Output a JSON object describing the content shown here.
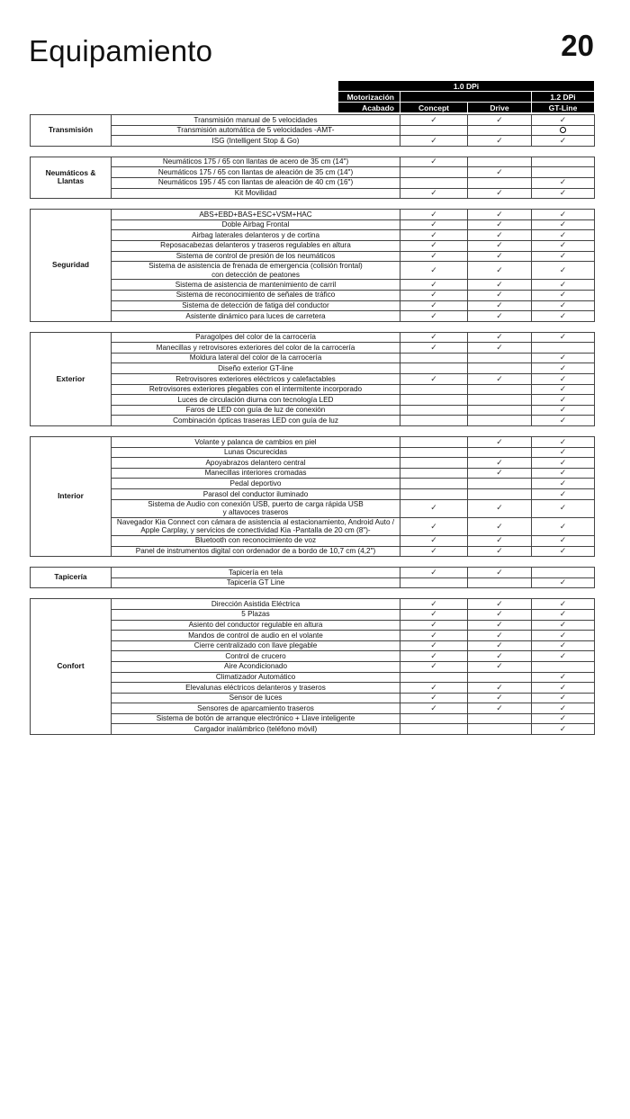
{
  "title": "Equipamiento",
  "page_number": "20",
  "header": {
    "engine_group": "1.0 DPi",
    "motorizacion_label": "Motorización",
    "engine_alt": "1.2 DPi",
    "acabado_label": "Acabado",
    "trims": [
      "Concept",
      "Drive",
      "GT-Line"
    ]
  },
  "symbols": {
    "check": "✓",
    "circle": "optional-circle-icon"
  },
  "sections": [
    {
      "name": "Transmisión",
      "rows": [
        {
          "f": "Transmisión manual de 5 velocidades",
          "v": [
            "c",
            "c",
            "c"
          ]
        },
        {
          "f": "Transmisión automática de 5 velocidades -AMT-",
          "v": [
            "",
            "",
            "o"
          ]
        },
        {
          "f": "ISG (Intelligent Stop & Go)",
          "v": [
            "c",
            "c",
            "c"
          ]
        }
      ]
    },
    {
      "name": "Neumáticos & Llantas",
      "rows": [
        {
          "f": "Neumáticos 175 / 65 con llantas de acero de 35 cm (14\")",
          "v": [
            "c",
            "",
            ""
          ]
        },
        {
          "f": "Neumáticos 175 / 65 con llantas de aleación de 35 cm (14\")",
          "v": [
            "",
            "c",
            ""
          ]
        },
        {
          "f": "Neumáticos 195 / 45 con llantas de aleación de 40 cm (16\")",
          "v": [
            "",
            "",
            "c"
          ]
        },
        {
          "f": "Kit Movilidad",
          "v": [
            "c",
            "c",
            "c"
          ]
        }
      ]
    },
    {
      "name": "Seguridad",
      "rows": [
        {
          "f": "ABS+EBD+BAS+ESC+VSM+HAC",
          "v": [
            "c",
            "c",
            "c"
          ]
        },
        {
          "f": "Doble Airbag Frontal",
          "v": [
            "c",
            "c",
            "c"
          ]
        },
        {
          "f": "Airbag laterales delanteros y de cortina",
          "v": [
            "c",
            "c",
            "c"
          ]
        },
        {
          "f": "Reposacabezas delanteros y traseros regulables en altura",
          "v": [
            "c",
            "c",
            "c"
          ]
        },
        {
          "f": "Sistema de control de presión de los neumáticos",
          "v": [
            "c",
            "c",
            "c"
          ]
        },
        {
          "f": "Sistema de asistencia de frenada de emergencia (colisión frontal)\ncon detección de peatones",
          "v": [
            "c",
            "c",
            "c"
          ]
        },
        {
          "f": "Sistema de asistencia de mantenimiento de carril",
          "v": [
            "c",
            "c",
            "c"
          ]
        },
        {
          "f": "Sistema de reconocimiento de señales de tráfico",
          "v": [
            "c",
            "c",
            "c"
          ]
        },
        {
          "f": "Sistema de detección de fatiga del conductor",
          "v": [
            "c",
            "c",
            "c"
          ]
        },
        {
          "f": "Asistente dinámico para luces de carretera",
          "v": [
            "c",
            "c",
            "c"
          ]
        }
      ]
    },
    {
      "name": "Exterior",
      "rows": [
        {
          "f": "Paragolpes del color de la carrocería",
          "v": [
            "c",
            "c",
            "c"
          ]
        },
        {
          "f": "Manecillas y retrovisores exteriores del color de la carrocería",
          "v": [
            "c",
            "c",
            ""
          ]
        },
        {
          "f": "Moldura lateral del color de la carrocería",
          "v": [
            "",
            "",
            "c"
          ]
        },
        {
          "f": "Diseño exterior GT-line",
          "v": [
            "",
            "",
            "c"
          ]
        },
        {
          "f": "Retrovisores exteriores eléctricos y calefactables",
          "v": [
            "c",
            "c",
            "c"
          ]
        },
        {
          "f": "Retrovisores exteriores plegables con el intermitente incorporado",
          "v": [
            "",
            "",
            "c"
          ]
        },
        {
          "f": "Luces de circulación diurna con tecnología LED",
          "v": [
            "",
            "",
            "c"
          ]
        },
        {
          "f": "Faros de LED con guía de luz de conexión",
          "v": [
            "",
            "",
            "c"
          ]
        },
        {
          "f": "Combinación ópticas traseras LED con guía de luz",
          "v": [
            "",
            "",
            "c"
          ]
        }
      ]
    },
    {
      "name": "Interior",
      "rows": [
        {
          "f": "Volante y palanca de cambios en piel",
          "v": [
            "",
            "c",
            "c"
          ]
        },
        {
          "f": "Lunas Oscurecidas",
          "v": [
            "",
            "",
            "c"
          ]
        },
        {
          "f": "Apoyabrazos delantero central",
          "v": [
            "",
            "c",
            "c"
          ]
        },
        {
          "f": "Manecillas interiores cromadas",
          "v": [
            "",
            "c",
            "c"
          ]
        },
        {
          "f": "Pedal deportivo",
          "v": [
            "",
            "",
            "c"
          ]
        },
        {
          "f": "Parasol del conductor iluminado",
          "v": [
            "",
            "",
            "c"
          ]
        },
        {
          "f": "Sistema de Audio con conexión USB, puerto de carga rápida USB\ny altavoces traseros",
          "v": [
            "c",
            "c",
            "c"
          ]
        },
        {
          "f": "Navegador Kia Connect con cámara de asistencia al estacionamiento, Android Auto /\nApple Carplay, y servicios de conectividad Kia -Pantalla de 20 cm (8\")-",
          "v": [
            "c",
            "c",
            "c"
          ]
        },
        {
          "f": "Bluetooth con reconocimiento de voz",
          "v": [
            "c",
            "c",
            "c"
          ]
        },
        {
          "f": "Panel de instrumentos digital con ordenador de a bordo de 10,7 cm (4,2\")",
          "v": [
            "c",
            "c",
            "c"
          ]
        }
      ]
    },
    {
      "name": "Tapicería",
      "rows": [
        {
          "f": "Tapicería en tela",
          "v": [
            "c",
            "c",
            ""
          ]
        },
        {
          "f": "Tapicería GT Line",
          "v": [
            "",
            "",
            "c"
          ]
        }
      ]
    },
    {
      "name": "Confort",
      "rows": [
        {
          "f": "Dirección Asistida Eléctrica",
          "v": [
            "c",
            "c",
            "c"
          ]
        },
        {
          "f": "5 Plazas",
          "v": [
            "c",
            "c",
            "c"
          ]
        },
        {
          "f": "Asiento del conductor regulable en altura",
          "v": [
            "c",
            "c",
            "c"
          ]
        },
        {
          "f": "Mandos de control de audio en el volante",
          "v": [
            "c",
            "c",
            "c"
          ]
        },
        {
          "f": "Cierre centralizado con llave plegable",
          "v": [
            "c",
            "c",
            "c"
          ]
        },
        {
          "f": "Control de crucero",
          "v": [
            "c",
            "c",
            "c"
          ]
        },
        {
          "f": "Aire Acondicionado",
          "v": [
            "c",
            "c",
            ""
          ]
        },
        {
          "f": "Climatizador Automático",
          "v": [
            "",
            "",
            "c"
          ]
        },
        {
          "f": "Elevalunas eléctricos delanteros y traseros",
          "v": [
            "c",
            "c",
            "c"
          ]
        },
        {
          "f": "Sensor de luces",
          "v": [
            "c",
            "c",
            "c"
          ]
        },
        {
          "f": "Sensores de aparcamiento traseros",
          "v": [
            "c",
            "c",
            "c"
          ]
        },
        {
          "f": "Sistema de botón de arranque electrónico + Llave inteligente",
          "v": [
            "",
            "",
            "c"
          ]
        },
        {
          "f": "Cargador inalámbrico (teléfono móvil)",
          "v": [
            "",
            "",
            "c"
          ]
        }
      ]
    }
  ]
}
